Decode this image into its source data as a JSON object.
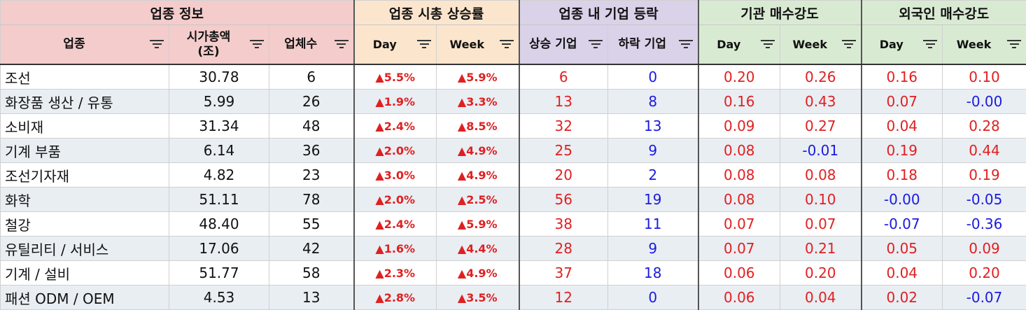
{
  "groups": {
    "info": "업종 정보",
    "cap_rise": "업종 시총 상승률",
    "breadth": "업종 내 기업 등락",
    "inst": "기관 매수강도",
    "foreign": "외국인 매수강도"
  },
  "columns": {
    "sector": "업종",
    "mcap_line1": "시가총액",
    "mcap_line2": "(조)",
    "count": "업체수",
    "day": "Day",
    "week": "Week",
    "rising": "상승 기업",
    "falling": "하락 기업"
  },
  "rows": [
    {
      "sector": "조선",
      "mcap": "30.78",
      "count": "6",
      "cap_day": "▲5.5%",
      "cap_week": "▲5.9%",
      "up": "6",
      "down": "0",
      "inst_day": "0.20",
      "inst_week": "0.26",
      "for_day": "0.16",
      "for_week": "0.10"
    },
    {
      "sector": "화장품 생산 / 유통",
      "mcap": "5.99",
      "count": "26",
      "cap_day": "▲1.9%",
      "cap_week": "▲3.3%",
      "up": "13",
      "down": "8",
      "inst_day": "0.16",
      "inst_week": "0.43",
      "for_day": "0.07",
      "for_week": "-0.00"
    },
    {
      "sector": "소비재",
      "mcap": "31.34",
      "count": "48",
      "cap_day": "▲2.4%",
      "cap_week": "▲8.5%",
      "up": "32",
      "down": "13",
      "inst_day": "0.09",
      "inst_week": "0.27",
      "for_day": "0.04",
      "for_week": "0.28"
    },
    {
      "sector": "기계 부품",
      "mcap": "6.14",
      "count": "36",
      "cap_day": "▲2.0%",
      "cap_week": "▲4.9%",
      "up": "25",
      "down": "9",
      "inst_day": "0.08",
      "inst_week": "-0.01",
      "for_day": "0.19",
      "for_week": "0.44"
    },
    {
      "sector": "조선기자재",
      "mcap": "4.82",
      "count": "23",
      "cap_day": "▲3.0%",
      "cap_week": "▲4.9%",
      "up": "20",
      "down": "2",
      "inst_day": "0.08",
      "inst_week": "0.08",
      "for_day": "0.18",
      "for_week": "0.19"
    },
    {
      "sector": "화학",
      "mcap": "51.11",
      "count": "78",
      "cap_day": "▲2.0%",
      "cap_week": "▲2.5%",
      "up": "56",
      "down": "19",
      "inst_day": "0.08",
      "inst_week": "0.10",
      "for_day": "-0.00",
      "for_week": "-0.05"
    },
    {
      "sector": "철강",
      "mcap": "48.40",
      "count": "55",
      "cap_day": "▲2.4%",
      "cap_week": "▲5.9%",
      "up": "38",
      "down": "11",
      "inst_day": "0.07",
      "inst_week": "0.07",
      "for_day": "-0.07",
      "for_week": "-0.36"
    },
    {
      "sector": "유틸리티 / 서비스",
      "mcap": "17.06",
      "count": "42",
      "cap_day": "▲1.6%",
      "cap_week": "▲4.4%",
      "up": "28",
      "down": "9",
      "inst_day": "0.07",
      "inst_week": "0.21",
      "for_day": "0.05",
      "for_week": "0.09"
    },
    {
      "sector": "기계 / 설비",
      "mcap": "51.77",
      "count": "58",
      "cap_day": "▲2.3%",
      "cap_week": "▲4.9%",
      "up": "37",
      "down": "18",
      "inst_day": "0.06",
      "inst_week": "0.20",
      "for_day": "0.04",
      "for_week": "0.20"
    },
    {
      "sector": "패션 ODM / OEM",
      "mcap": "4.53",
      "count": "13",
      "cap_day": "▲2.8%",
      "cap_week": "▲3.5%",
      "up": "12",
      "down": "0",
      "inst_day": "0.06",
      "inst_week": "0.04",
      "for_day": "0.02",
      "for_week": "-0.07"
    }
  ],
  "colors": {
    "positive": "#e02020",
    "negative": "#1a1ae0"
  }
}
